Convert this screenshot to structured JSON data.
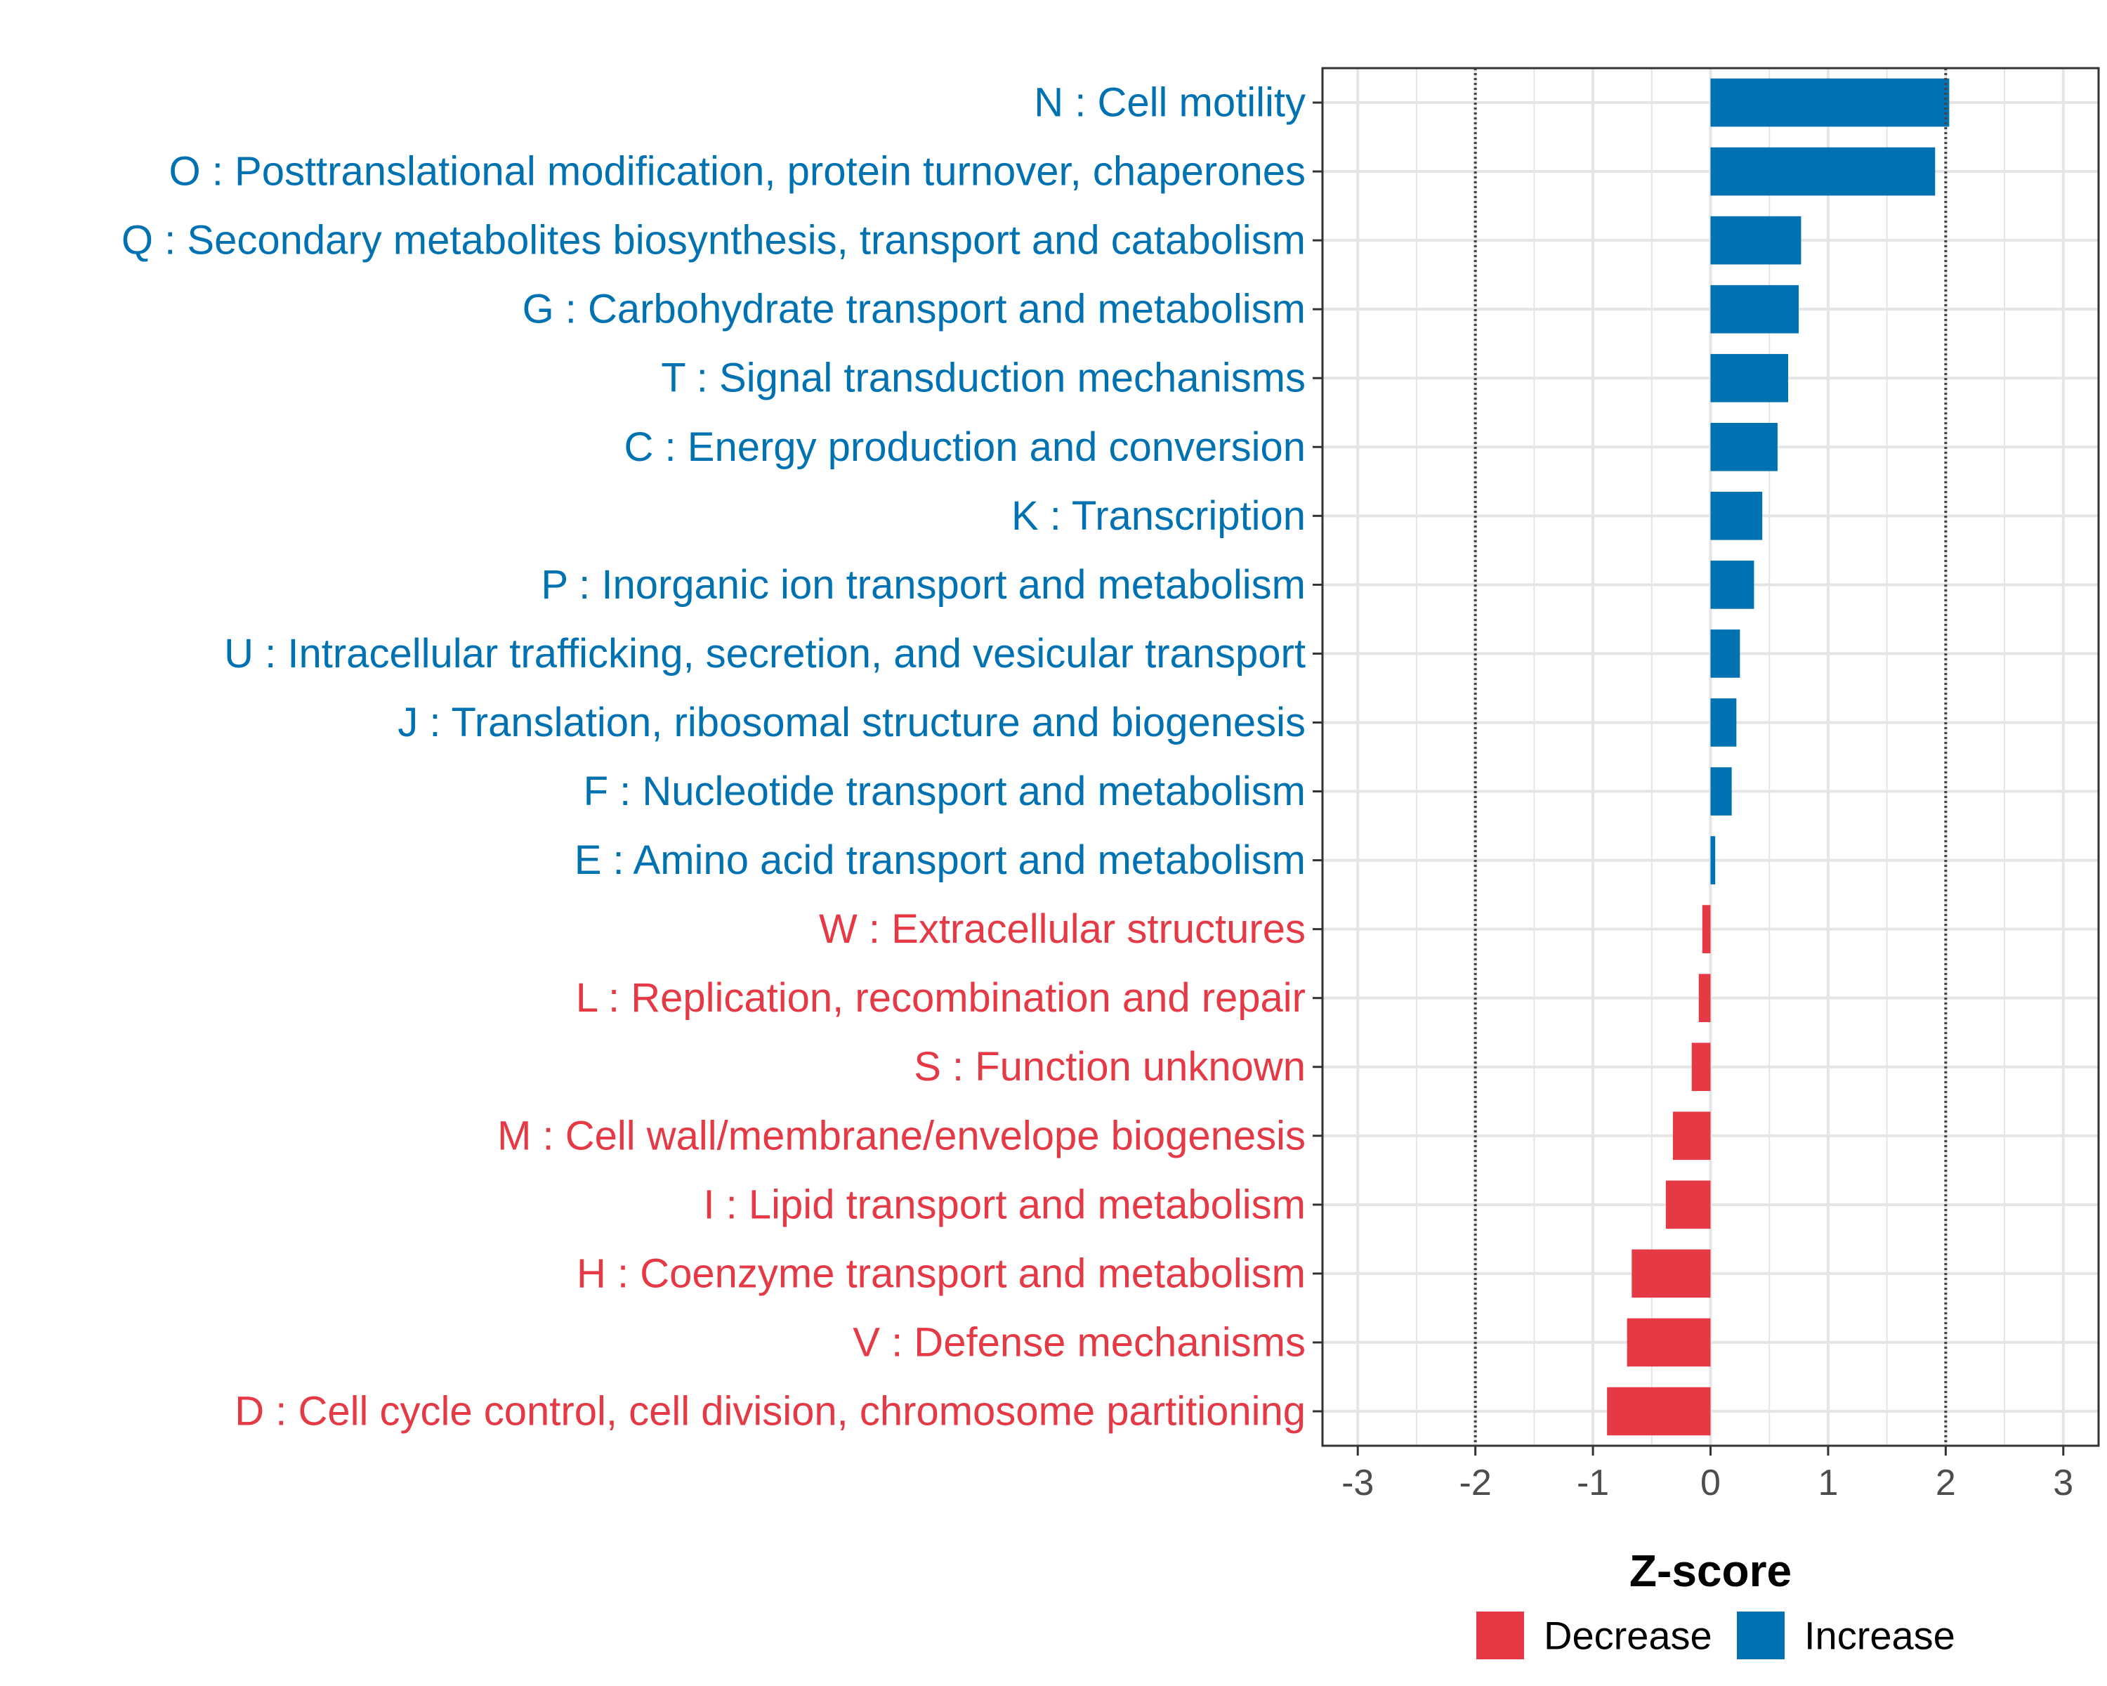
{
  "chart_data": {
    "type": "bar",
    "orientation": "horizontal",
    "xlabel": "Z-score",
    "xlim": [
      -3.3,
      3.3
    ],
    "x_ticks": [
      -3,
      -2,
      -1,
      0,
      1,
      2,
      3
    ],
    "x_tick_labels": [
      "-3",
      "-2",
      "-1",
      "0",
      "1",
      "2",
      "3"
    ],
    "reference_lines": [
      -2,
      2
    ],
    "grid": true,
    "categories": [
      "N : Cell motility",
      "O : Posttranslational modification, protein turnover, chaperones",
      "Q : Secondary metabolites biosynthesis, transport and catabolism",
      "G : Carbohydrate transport and metabolism",
      "T : Signal transduction mechanisms",
      "C : Energy production and conversion",
      "K : Transcription",
      "P : Inorganic ion transport and metabolism",
      "U : Intracellular trafficking, secretion, and vesicular transport",
      "J : Translation, ribosomal structure and biogenesis",
      "F : Nucleotide transport and metabolism",
      "E : Amino acid transport and metabolism",
      "W : Extracellular structures",
      "L : Replication, recombination and repair",
      "S : Function unknown",
      "M : Cell wall/membrane/envelope biogenesis",
      "I : Lipid transport and metabolism",
      "H : Coenzyme transport and metabolism",
      "V : Defense mechanisms",
      "D : Cell cycle control, cell division, chromosome partitioning"
    ],
    "values": [
      2.03,
      1.91,
      0.77,
      0.75,
      0.66,
      0.57,
      0.44,
      0.37,
      0.25,
      0.22,
      0.18,
      0.04,
      -0.07,
      -0.1,
      -0.16,
      -0.32,
      -0.38,
      -0.67,
      -0.71,
      -0.88
    ],
    "groups": [
      "Increase",
      "Increase",
      "Increase",
      "Increase",
      "Increase",
      "Increase",
      "Increase",
      "Increase",
      "Increase",
      "Increase",
      "Increase",
      "Increase",
      "Decrease",
      "Decrease",
      "Decrease",
      "Decrease",
      "Decrease",
      "Decrease",
      "Decrease",
      "Decrease"
    ],
    "legend": {
      "position": "bottom",
      "entries": [
        {
          "label": "Decrease",
          "color": "#E63946"
        },
        {
          "label": "Increase",
          "color": "#0072B2"
        }
      ]
    },
    "colors": {
      "Increase": "#0072B2",
      "Decrease": "#E63946"
    }
  }
}
